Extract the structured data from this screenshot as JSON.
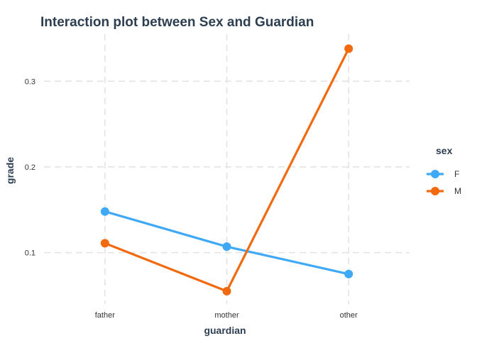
{
  "chart_data": {
    "type": "line",
    "title": "Interaction plot between Sex and Guardian",
    "xlabel": "guardian",
    "ylabel": "grade",
    "categories": [
      "father",
      "mother",
      "other"
    ],
    "yticks": [
      0.1,
      0.2,
      0.3
    ],
    "ylim": [
      0.04,
      0.355
    ],
    "grid": true,
    "legend": {
      "title": "sex",
      "position": "right"
    },
    "series": [
      {
        "name": "F",
        "color": "#3fa9f5",
        "values": [
          0.148,
          0.107,
          0.075
        ]
      },
      {
        "name": "M",
        "color": "#f26a10",
        "values": [
          0.111,
          0.055,
          0.338
        ]
      }
    ]
  }
}
